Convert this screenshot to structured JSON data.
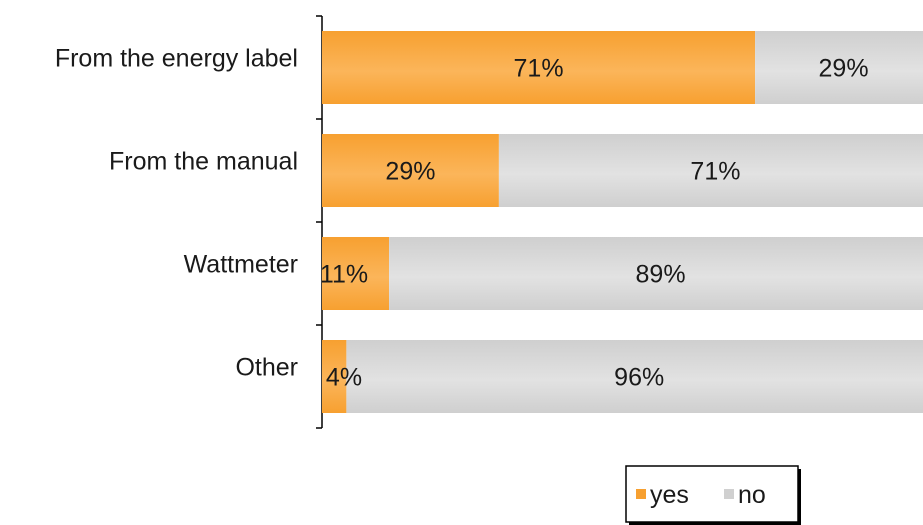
{
  "chart_data": {
    "type": "bar",
    "orientation": "horizontal",
    "stacked": true,
    "percent_stacked": true,
    "categories": [
      "From the energy label",
      "From the manual",
      "Wattmeter",
      "Other"
    ],
    "series": [
      {
        "name": "yes",
        "values": [
          71,
          29,
          11,
          4
        ],
        "labels": [
          "71%",
          "29%",
          "11%",
          "4%"
        ],
        "color": "#f7a030",
        "color_light": "#fdc47a"
      },
      {
        "name": "no",
        "values": [
          29,
          71,
          89,
          96
        ],
        "labels": [
          "29%",
          "71%",
          "89%",
          "96%"
        ],
        "color": "#d0d0d0",
        "color_light": "#e4e4e4"
      }
    ],
    "xlim": [
      0,
      100
    ],
    "grid": false,
    "legend_position": "bottom-right"
  }
}
